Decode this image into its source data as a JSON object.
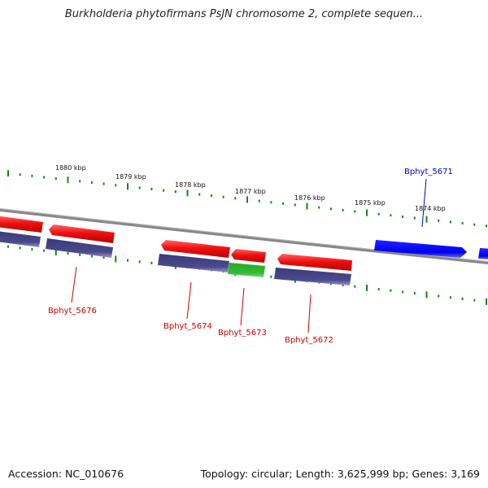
{
  "title": "Burkholderia phytofirmans PsJN chromosome 2, complete sequen...",
  "footer": {
    "accession": "Accession: NC_010676",
    "stats": "Topology: circular; Length: 3,625,999 bp; Genes: 3,169"
  },
  "colors": {
    "forward_cds": "#ee1111",
    "reverse_cds": "#4a4a8c",
    "rna": "#33bb33",
    "highlight": "#0000ee",
    "tick": "#118811",
    "backbone": "#888888",
    "label_red": "#cc0000",
    "label_blue": "#0000cc"
  },
  "ticks": [
    "1880 kbp",
    "1879 kbp",
    "1878 kbp",
    "1877 kbp",
    "1876 kbp",
    "1875 kbp",
    "1874 kbp"
  ],
  "gene_labels": [
    "Bphyt_5676",
    "Bphyt_5674",
    "Bphyt_5673",
    "Bphyt_5672",
    "Bphyt_5671"
  ]
}
